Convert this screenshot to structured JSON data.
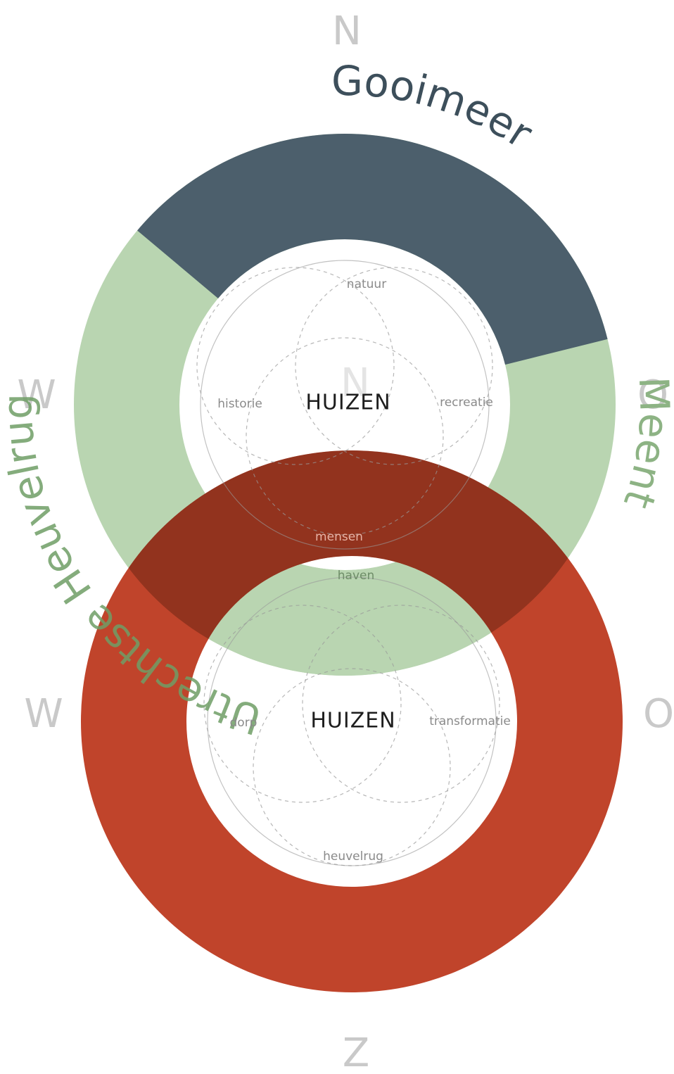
{
  "compass": {
    "north": "N",
    "west_top": "W",
    "east_top": "O",
    "west_bottom": "W",
    "east_bottom": "O",
    "south": "Z"
  },
  "regions": {
    "gooimeer": "Gooimeer",
    "meent": "Meent",
    "heuvelrug": "Utrechtse Heuvelrug"
  },
  "top_ring": {
    "watermark": "N",
    "center": "HUIZEN",
    "top": "natuur",
    "left": "historie",
    "right": "recreatie",
    "bottom": "mensen"
  },
  "bottom_ring": {
    "center": "HUIZEN",
    "top": "haven",
    "left": "dorp",
    "right": "transformatie",
    "bottom": "heuvelrug"
  }
}
